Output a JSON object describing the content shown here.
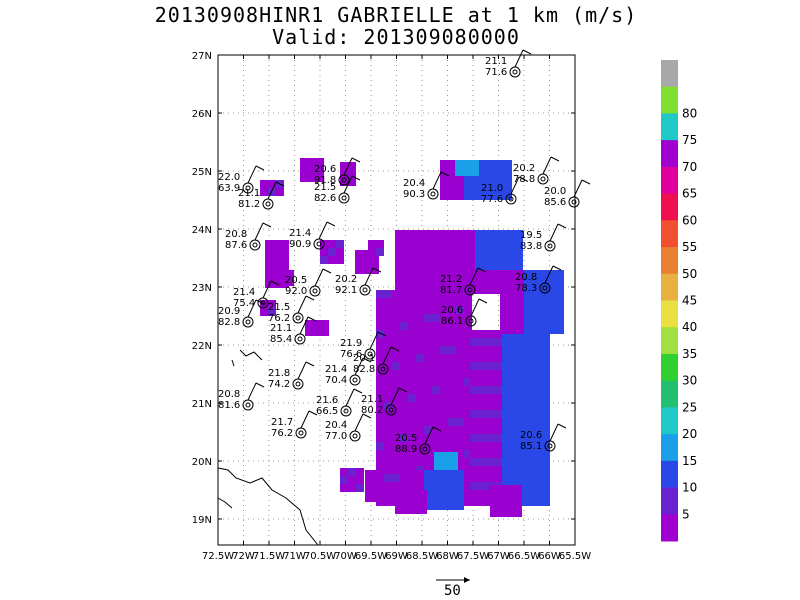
{
  "title_line1": "20130908HINR1 GABRIELLE at 1 km (m/s)",
  "title_line2": "Valid: 201309080000",
  "lat_labels": [
    "27N",
    "26N",
    "25N",
    "24N",
    "23N",
    "22N",
    "21N",
    "20N",
    "19N"
  ],
  "lon_labels": [
    "72.5W",
    "72W",
    "71.5W",
    "71W",
    "70.5W",
    "70W",
    "69.5W",
    "69W",
    "68.5W",
    "68W",
    "67.5W",
    "67W",
    "66.5W",
    "66W",
    "65.5W"
  ],
  "colorbar": {
    "colors": [
      "#a000d0",
      "#6a22d0",
      "#2a48e8",
      "#1aa0e8",
      "#20c8c8",
      "#20c070",
      "#30d030",
      "#a0e040",
      "#e8e040",
      "#e8b040",
      "#e88030",
      "#f05030",
      "#f01050",
      "#e000a0",
      "#a000d0",
      "#20c8c8",
      "#80e030",
      "#a8a8a8"
    ],
    "labels": [
      "5",
      "10",
      "15",
      "20",
      "25",
      "30",
      "35",
      "40",
      "45",
      "50",
      "55",
      "60",
      "65",
      "70",
      "75",
      "80"
    ]
  },
  "scale_vector": {
    "label": "50"
  },
  "stations": [
    {
      "lines": [
        "21.1",
        "71.6"
      ]
    },
    {
      "lines": [
        "22.0",
        "63.9"
      ]
    },
    {
      "lines": [
        "21.1",
        "81.2"
      ]
    },
    {
      "lines": [
        "20.6",
        "91.8"
      ]
    },
    {
      "lines": [
        "21.5",
        "82.6"
      ]
    },
    {
      "lines": [
        "20.4",
        "90.3"
      ]
    },
    {
      "lines": [
        "21.0",
        "77.6"
      ]
    },
    {
      "lines": [
        "20.2",
        "78.8"
      ]
    },
    {
      "lines": [
        "20.0",
        "85.6"
      ]
    },
    {
      "lines": [
        "20.8",
        "87.6"
      ]
    },
    {
      "lines": [
        "21.4",
        "90.9"
      ]
    },
    {
      "lines": [
        "20.5",
        "92.0"
      ]
    },
    {
      "lines": [
        "19.5",
        "83.8"
      ]
    },
    {
      "lines": [
        "21.4",
        "75.4"
      ]
    },
    {
      "lines": [
        "20.9",
        "82.8"
      ]
    },
    {
      "lines": [
        "21.5",
        "76.2"
      ]
    },
    {
      "lines": [
        "21.1",
        "85.4"
      ]
    },
    {
      "lines": [
        "20.2",
        "92.1"
      ]
    },
    {
      "lines": [
        "21.2",
        "81.7"
      ]
    },
    {
      "lines": [
        "20.8",
        "78.3"
      ]
    },
    {
      "lines": [
        "20.6",
        "86.1"
      ]
    },
    {
      "lines": [
        "21.9",
        "76.6"
      ]
    },
    {
      "lines": [
        "20.1",
        "82.8"
      ]
    },
    {
      "lines": [
        "21.4",
        "70.4"
      ]
    },
    {
      "lines": [
        "21.8",
        "74.2"
      ]
    },
    {
      "lines": [
        "20.8",
        "81.6"
      ]
    },
    {
      "lines": [
        "21.6",
        "66.5"
      ]
    },
    {
      "lines": [
        "21.1",
        "80.2"
      ]
    },
    {
      "lines": [
        "21.7",
        "76.2"
      ]
    },
    {
      "lines": [
        "20.4",
        "77.0"
      ]
    },
    {
      "lines": [
        "20.5",
        "88.9"
      ]
    },
    {
      "lines": [
        "20.6",
        "85.1"
      ]
    }
  ]
}
